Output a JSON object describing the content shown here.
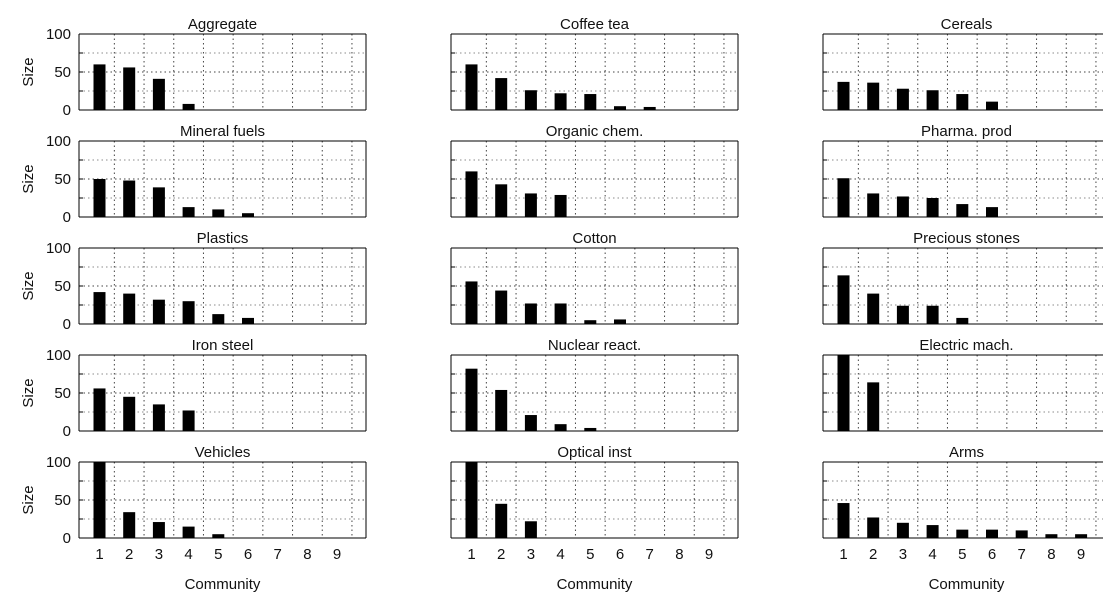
{
  "layout": {
    "rows": 5,
    "cols": 3
  },
  "common": {
    "ylabel": "Size",
    "xlabel": "Community",
    "yticks": [
      0,
      50,
      100
    ],
    "xticks": [
      1,
      2,
      3,
      4,
      5,
      6,
      7,
      8,
      9
    ]
  },
  "chart_data": [
    {
      "type": "bar",
      "title": "Aggregate",
      "categories": [
        1,
        2,
        3,
        4,
        5,
        6,
        7,
        8,
        9
      ],
      "values": [
        60,
        56,
        41,
        8,
        0,
        0,
        0,
        0,
        0
      ],
      "xlabel": "",
      "ylabel": "Size",
      "ylim": [
        0,
        100
      ],
      "grid": true
    },
    {
      "type": "bar",
      "title": "Coffee tea",
      "categories": [
        1,
        2,
        3,
        4,
        5,
        6,
        7,
        8,
        9
      ],
      "values": [
        60,
        42,
        26,
        22,
        21,
        5,
        4,
        0,
        0
      ],
      "xlabel": "",
      "ylabel": "",
      "ylim": [
        0,
        100
      ],
      "grid": true
    },
    {
      "type": "bar",
      "title": "Cereals",
      "categories": [
        1,
        2,
        3,
        4,
        5,
        6,
        7,
        8,
        9
      ],
      "values": [
        37,
        36,
        28,
        26,
        21,
        11,
        0,
        0,
        0
      ],
      "xlabel": "",
      "ylabel": "",
      "ylim": [
        0,
        100
      ],
      "grid": true
    },
    {
      "type": "bar",
      "title": "Mineral fuels",
      "categories": [
        1,
        2,
        3,
        4,
        5,
        6,
        7,
        8,
        9
      ],
      "values": [
        50,
        48,
        39,
        13,
        10,
        5,
        0,
        0,
        0
      ],
      "xlabel": "",
      "ylabel": "Size",
      "ylim": [
        0,
        100
      ],
      "grid": true
    },
    {
      "type": "bar",
      "title": "Organic chem.",
      "categories": [
        1,
        2,
        3,
        4,
        5,
        6,
        7,
        8,
        9
      ],
      "values": [
        60,
        43,
        31,
        29,
        0,
        0,
        0,
        0,
        0
      ],
      "xlabel": "",
      "ylabel": "",
      "ylim": [
        0,
        100
      ],
      "grid": true
    },
    {
      "type": "bar",
      "title": "Pharma. prod",
      "categories": [
        1,
        2,
        3,
        4,
        5,
        6,
        7,
        8,
        9
      ],
      "values": [
        51,
        31,
        27,
        25,
        17,
        13,
        0,
        0,
        0
      ],
      "xlabel": "",
      "ylabel": "",
      "ylim": [
        0,
        100
      ],
      "grid": true
    },
    {
      "type": "bar",
      "title": "Plastics",
      "categories": [
        1,
        2,
        3,
        4,
        5,
        6,
        7,
        8,
        9
      ],
      "values": [
        42,
        40,
        32,
        30,
        13,
        8,
        0,
        0,
        0
      ],
      "xlabel": "",
      "ylabel": "Size",
      "ylim": [
        0,
        100
      ],
      "grid": true
    },
    {
      "type": "bar",
      "title": "Cotton",
      "categories": [
        1,
        2,
        3,
        4,
        5,
        6,
        7,
        8,
        9
      ],
      "values": [
        56,
        44,
        27,
        27,
        5,
        6,
        0,
        0,
        0
      ],
      "xlabel": "",
      "ylabel": "",
      "ylim": [
        0,
        100
      ],
      "grid": true
    },
    {
      "type": "bar",
      "title": "Precious stones",
      "categories": [
        1,
        2,
        3,
        4,
        5,
        6,
        7,
        8,
        9
      ],
      "values": [
        64,
        40,
        24,
        24,
        8,
        0,
        0,
        0,
        0
      ],
      "xlabel": "",
      "ylabel": "",
      "ylim": [
        0,
        100
      ],
      "grid": true
    },
    {
      "type": "bar",
      "title": "Iron steel",
      "categories": [
        1,
        2,
        3,
        4,
        5,
        6,
        7,
        8,
        9
      ],
      "values": [
        56,
        45,
        35,
        27,
        0,
        0,
        0,
        0,
        0
      ],
      "xlabel": "",
      "ylabel": "Size",
      "ylim": [
        0,
        100
      ],
      "grid": true
    },
    {
      "type": "bar",
      "title": "Nuclear react.",
      "categories": [
        1,
        2,
        3,
        4,
        5,
        6,
        7,
        8,
        9
      ],
      "values": [
        82,
        54,
        21,
        9,
        4,
        0,
        0,
        0,
        0
      ],
      "xlabel": "",
      "ylabel": "",
      "ylim": [
        0,
        100
      ],
      "grid": true
    },
    {
      "type": "bar",
      "title": "Electric mach.",
      "categories": [
        1,
        2,
        3,
        4,
        5,
        6,
        7,
        8,
        9
      ],
      "values": [
        100,
        64,
        0,
        0,
        0,
        0,
        0,
        0,
        0
      ],
      "xlabel": "",
      "ylabel": "",
      "ylim": [
        0,
        100
      ],
      "grid": true
    },
    {
      "type": "bar",
      "title": "Vehicles",
      "categories": [
        1,
        2,
        3,
        4,
        5,
        6,
        7,
        8,
        9
      ],
      "values": [
        100,
        34,
        21,
        15,
        5,
        0,
        0,
        0,
        0
      ],
      "xlabel": "Community",
      "ylabel": "Size",
      "ylim": [
        0,
        100
      ],
      "grid": true
    },
    {
      "type": "bar",
      "title": "Optical inst",
      "categories": [
        1,
        2,
        3,
        4,
        5,
        6,
        7,
        8,
        9
      ],
      "values": [
        100,
        45,
        22,
        0,
        0,
        0,
        0,
        0,
        0
      ],
      "xlabel": "Community",
      "ylabel": "",
      "ylim": [
        0,
        100
      ],
      "grid": true
    },
    {
      "type": "bar",
      "title": "Arms",
      "categories": [
        1,
        2,
        3,
        4,
        5,
        6,
        7,
        8,
        9
      ],
      "values": [
        46,
        27,
        20,
        17,
        11,
        11,
        10,
        5,
        5
      ],
      "xlabel": "Community",
      "ylabel": "",
      "ylim": [
        0,
        100
      ],
      "grid": true
    }
  ]
}
